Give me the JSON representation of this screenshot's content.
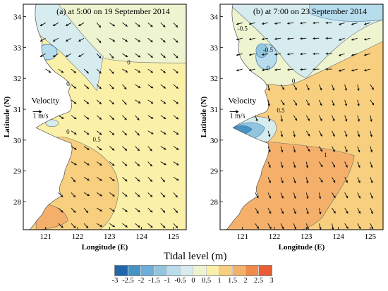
{
  "chart_data": [
    {
      "type": "map",
      "panel_label": "(a) at 5:00 on 19 September 2014",
      "xlabel": "Longitude (E)",
      "ylabel": "Latitude (N)",
      "xticks": [
        "121",
        "122",
        "123",
        "124",
        "125"
      ],
      "yticks": [
        "34",
        "33",
        "32",
        "31",
        "30",
        "29",
        "28"
      ],
      "xlim": [
        120.3,
        125.4
      ],
      "ylim": [
        27.1,
        34.4
      ],
      "velocity_label": "Velocity",
      "velocity_scale_label": "1 m/s",
      "contour_labels": [
        "0",
        "0",
        "0.5",
        "0"
      ],
      "dominant_level": "0 to 0.5",
      "regions": [
        {
          "level": "-1 to -0.5",
          "location": "near 121.0E 32.9N"
        },
        {
          "level": "-0.5 to 0",
          "location": "northern Yellow Sea coast"
        },
        {
          "level": "1 to 1.5",
          "location": "southwest near 121.0E 27.6N"
        },
        {
          "level": "0.5 to 1",
          "location": "southern coast, 121.0E-123.2E, 27.3N-30.0N"
        }
      ]
    },
    {
      "type": "map",
      "panel_label": "(b) at 7:00 on 23 September 2014",
      "xlabel": "Longitude (E)",
      "ylabel": "Latitude (N)",
      "xticks": [
        "121",
        "122",
        "123",
        "124",
        "125"
      ],
      "yticks": [
        "34",
        "33",
        "32",
        "31",
        "30",
        "29",
        "28"
      ],
      "xlim": [
        120.3,
        125.4
      ],
      "ylim": [
        27.1,
        34.4
      ],
      "velocity_label": "Velocity",
      "velocity_scale_label": "1 m/s",
      "contour_labels": [
        "-0.5",
        "0",
        "-0.5",
        "0",
        "0.5",
        "1"
      ],
      "dominant_level": "0.5 to 1",
      "regions": [
        {
          "level": "-1 to -0.5",
          "location": "near 121.7E 32.8N"
        },
        {
          "level": "-2.5 to -2",
          "location": "Hangzhou Bay near 121.0E 30.3N"
        },
        {
          "level": "-0.5 to 0",
          "location": "north of 31.8N"
        },
        {
          "level": "1 to 1.5",
          "location": "south, 121.0E-124.5E, 27.3N-30.0N"
        }
      ]
    }
  ],
  "legend": {
    "title": "Tidal level (m)",
    "ticks": [
      "-3",
      "-2.5",
      "-2",
      "-1.5",
      "-1",
      "-0.5",
      "0",
      "0.5",
      "1",
      "1.5",
      "2",
      "2.5",
      "3"
    ],
    "colors": [
      "#2166ac",
      "#4393c3",
      "#6eaedb",
      "#92c5de",
      "#b7dcec",
      "#d6ecef",
      "#eef4cf",
      "#fbf0a8",
      "#f7cf7f",
      "#f4b06a",
      "#f08a4b",
      "#ea5c33"
    ]
  },
  "colors": {
    "land": "#ffffff",
    "frame": "#000000",
    "arrow": "#111111"
  }
}
